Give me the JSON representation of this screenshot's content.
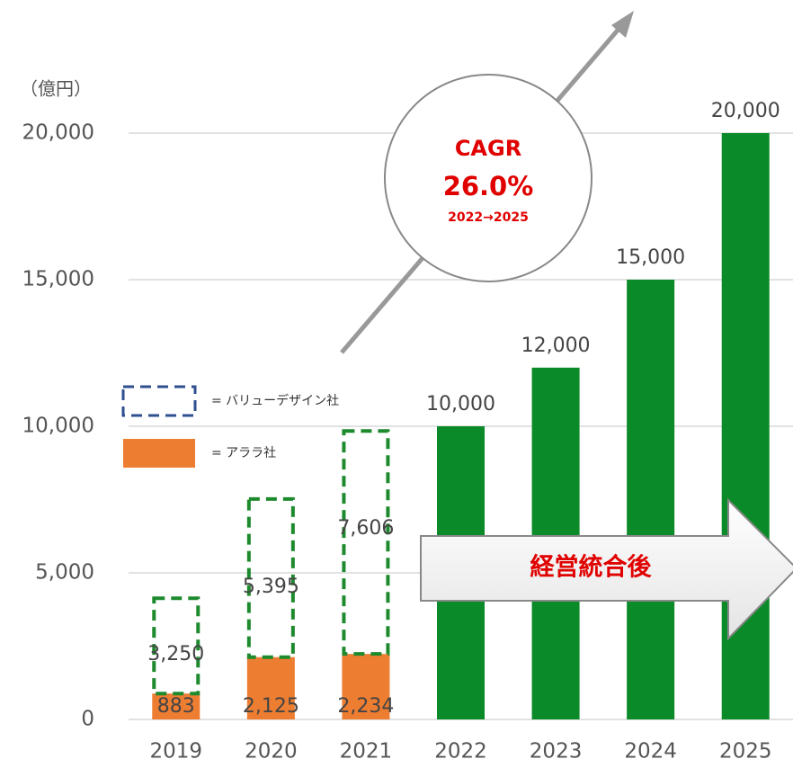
{
  "chart_data": {
    "type": "bar",
    "stacked": true,
    "y_label": "（億円）",
    "categories": [
      "2019",
      "2020",
      "2021",
      "2022",
      "2023",
      "2024",
      "2025"
    ],
    "series": [
      {
        "name": "= アララ社",
        "color": "#ed7d31",
        "style": "solid",
        "values": [
          883,
          2125,
          2234,
          null,
          null,
          null,
          null
        ]
      },
      {
        "name": "= バリューデザイン社",
        "color": "#1e8a2e",
        "legend_color": "#2f4f8f",
        "style": "dashed",
        "values": [
          3250,
          5395,
          7606,
          null,
          null,
          null,
          null
        ]
      },
      {
        "color": "#0a8a28",
        "style": "solid",
        "values": [
          null,
          null,
          null,
          10000,
          12000,
          15000,
          20000
        ]
      }
    ],
    "value_labels": [
      [
        "883",
        "2,125",
        "2,234",
        null,
        null,
        null,
        null
      ],
      [
        "3,250",
        "5,395",
        "7,606",
        null,
        null,
        null,
        null
      ],
      [
        null,
        null,
        null,
        "10,000",
        "12,000",
        "15,000",
        "20,000"
      ]
    ],
    "ylim": [
      0,
      20000
    ],
    "yticks": [
      0,
      {
        "value": 5000,
        "label": "5,000"
      },
      {
        "value": 10000,
        "label": "10,000"
      },
      {
        "value": 15000,
        "label": "15,000"
      },
      {
        "value": 20000,
        "label": "20,000"
      }
    ],
    "grid": true,
    "annotations": {
      "cagr_title": "CAGR",
      "cagr_value": "26.0%",
      "cagr_period": "2022→2025",
      "merger": "経営統合後"
    }
  }
}
